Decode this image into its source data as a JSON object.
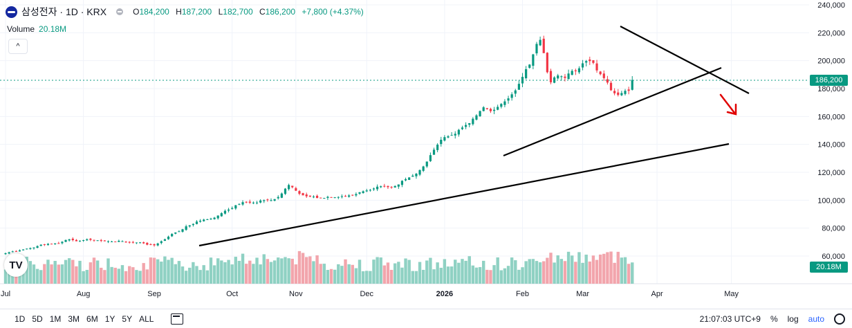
{
  "header": {
    "symbol": "삼성전자 · 1D · KRX",
    "ohlc": [
      {
        "k": "O",
        "v": "184,200"
      },
      {
        "k": "H",
        "v": "187,200"
      },
      {
        "k": "L",
        "v": "182,700"
      },
      {
        "k": "C",
        "v": "186,200"
      }
    ],
    "change": "+7,800 (+4.37%)",
    "volume_label": "Volume",
    "volume_value": "20.18M"
  },
  "tags": {
    "price": "186,200",
    "volume": "20.18M"
  },
  "bottom_bar": {
    "timeframes": [
      "1D",
      "5D",
      "1M",
      "3M",
      "6M",
      "1Y",
      "5Y",
      "ALL"
    ],
    "time": "21:07:03 UTC+9",
    "percent": "%",
    "log": "log",
    "auto": "auto"
  },
  "colors": {
    "up": "#089981",
    "down": "#f23645",
    "up_volume": "#8fd1c3",
    "down_volume": "#f2a5ac"
  },
  "chart_data": {
    "type": "candlestick",
    "y_ticks": [
      "240,000",
      "220,000",
      "200,000",
      "180,000",
      "160,000",
      "140,000",
      "120,000",
      "100,000",
      "80,000",
      "60,000"
    ],
    "y_tick_values": [
      240000,
      220000,
      200000,
      180000,
      160000,
      140000,
      120000,
      100000,
      80000,
      60000
    ],
    "ylim": [
      50000,
      240000
    ],
    "x_ticks": [
      {
        "label": "Jul",
        "i": 0
      },
      {
        "label": "Aug",
        "i": 22
      },
      {
        "label": "Sep",
        "i": 42
      },
      {
        "label": "Oct",
        "i": 64
      },
      {
        "label": "Nov",
        "i": 82
      },
      {
        "label": "Dec",
        "i": 102
      },
      {
        "label": "2026",
        "i": 124
      },
      {
        "label": "Feb",
        "i": 146
      },
      {
        "label": "Mar",
        "i": 163
      },
      {
        "label": "Apr",
        "i": 184
      },
      {
        "label": "May",
        "i": 205
      }
    ],
    "closes": [
      62000,
      62700,
      63300,
      63500,
      64100,
      64700,
      65300,
      65700,
      66100,
      67100,
      68100,
      68100,
      68700,
      68800,
      69100,
      69200,
      70200,
      71500,
      72000,
      71400,
      70600,
      71000,
      71400,
      72000,
      71600,
      71100,
      71300,
      70900,
      70600,
      70600,
      70400,
      70300,
      70900,
      70600,
      69900,
      69700,
      69600,
      69700,
      69800,
      69100,
      68100,
      68300,
      67700,
      69000,
      70600,
      72000,
      73900,
      75800,
      76900,
      77700,
      79200,
      81300,
      82000,
      83000,
      84700,
      85300,
      86100,
      86300,
      86800,
      87500,
      89000,
      90700,
      92400,
      93300,
      94400,
      96400,
      97300,
      98600,
      98700,
      98200,
      98300,
      98300,
      99800,
      100000,
      100200,
      100000,
      100800,
      102300,
      104800,
      108300,
      110900,
      109300,
      106800,
      104600,
      103500,
      102800,
      102600,
      102600,
      101600,
      101700,
      101600,
      102400,
      102100,
      102100,
      102300,
      102800,
      102800,
      103400,
      103800,
      104400,
      105700,
      106400,
      107000,
      107400,
      108400,
      109700,
      110000,
      109800,
      109400,
      109200,
      110100,
      111300,
      113900,
      115100,
      116300,
      117600,
      119000,
      121600,
      124200,
      127700,
      132300,
      136200,
      139800,
      143300,
      145200,
      145800,
      146700,
      147600,
      150400,
      152100,
      153900,
      155200,
      158400,
      160800,
      163900,
      166600,
      165300,
      163800,
      164800,
      166900,
      169000,
      170800,
      173000,
      175900,
      178700,
      183400,
      188400,
      193900,
      197200,
      204500,
      212000,
      214900,
      205400,
      191700,
      184500,
      188000,
      189400,
      188800,
      187600,
      190800,
      192700,
      192400,
      194500,
      198100,
      199700,
      199700,
      198400,
      193000,
      190300,
      187500,
      184300,
      178800,
      176600,
      175400,
      176800,
      178400,
      178400,
      186200
    ],
    "volume_unit": "shares",
    "last_volume": "20.18M"
  }
}
